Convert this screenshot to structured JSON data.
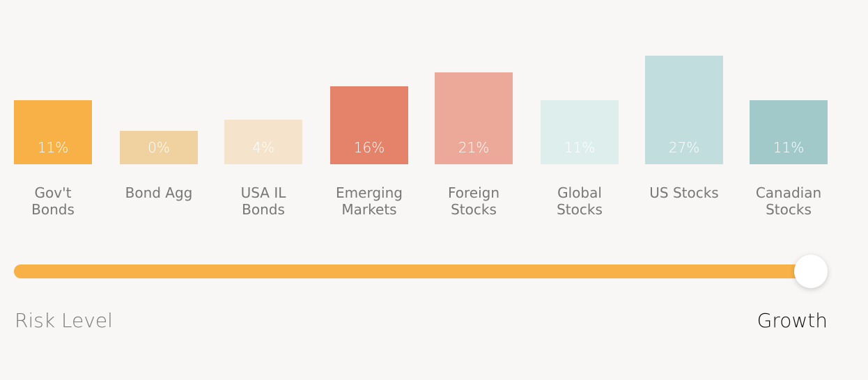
{
  "chart_data": {
    "type": "bar",
    "categories": [
      [
        "Gov't",
        "Bonds"
      ],
      [
        "Bond Agg"
      ],
      [
        "USA IL",
        "Bonds"
      ],
      [
        "Emerging",
        "Markets"
      ],
      [
        "Foreign",
        "Stocks"
      ],
      [
        "Global",
        "Stocks"
      ],
      [
        "US Stocks"
      ],
      [
        "Canadian",
        "Stocks"
      ]
    ],
    "values": [
      11,
      0,
      4,
      16,
      21,
      11,
      27,
      11
    ],
    "value_labels": [
      "11%",
      "0%",
      "4%",
      "16%",
      "21%",
      "11%",
      "27%",
      "11%"
    ],
    "colors": [
      "#f8b146",
      "#f0d1a0",
      "#f5e4cb",
      "#e4826a",
      "#eca898",
      "#ddeeed",
      "#c2ddde",
      "#a2c9ca"
    ],
    "ylim": [
      0,
      27
    ],
    "grid": false,
    "legend": "none"
  },
  "risk_slider": {
    "label": "Risk Level",
    "value_label": "Growth",
    "level": 1.0,
    "fill_color": "#f8b146"
  }
}
